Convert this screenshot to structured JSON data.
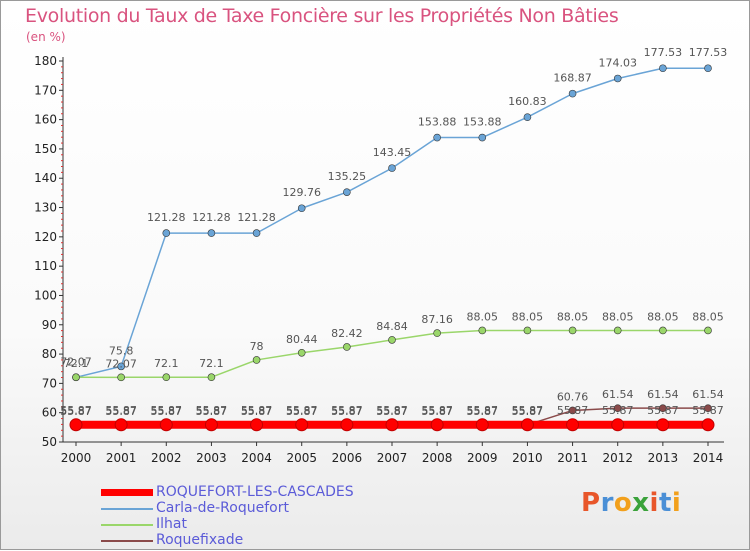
{
  "chart_data": {
    "type": "line",
    "title": "Evolution du Taux de Taxe Foncière sur les Propriétés Non Bâties",
    "unit_label": "(en %)",
    "x": [
      "2000",
      "2001",
      "2002",
      "2003",
      "2004",
      "2005",
      "2006",
      "2007",
      "2008",
      "2009",
      "2010",
      "2011",
      "2012",
      "2013",
      "2014"
    ],
    "ylim": [
      50,
      180
    ],
    "yticks": [
      50,
      60,
      70,
      80,
      90,
      100,
      110,
      120,
      130,
      140,
      150,
      160,
      170,
      180
    ],
    "grid": false,
    "legend_position": "bottom-left",
    "series": [
      {
        "name": "ROQUEFORT-LES-CASCADES",
        "color": "#ff0000",
        "values": [
          55.87,
          55.87,
          55.87,
          55.87,
          55.87,
          55.87,
          55.87,
          55.87,
          55.87,
          55.87,
          55.87,
          55.87,
          55.87,
          55.87,
          55.87
        ],
        "labels": [
          "55.87",
          "55.87",
          "55.87",
          "55.87",
          "55.87",
          "55.87",
          "55.87",
          "55.87",
          "55.87",
          "55.87",
          "55.87",
          "55.87",
          "55.87",
          "55.87",
          "55.87"
        ]
      },
      {
        "name": "Carla-de-Roquefort",
        "color": "#6aa4d6",
        "values": [
          72.07,
          75.8,
          121.28,
          121.28,
          121.28,
          129.76,
          135.25,
          143.45,
          153.88,
          153.88,
          160.83,
          168.87,
          174.03,
          177.53,
          177.53
        ],
        "labels": [
          "72.07",
          "75.8",
          "121.28",
          "121.28",
          "121.28",
          "129.76",
          "135.25",
          "143.45",
          "153.88",
          "153.88",
          "160.83",
          "168.87",
          "174.03",
          "177.53",
          "177.53"
        ]
      },
      {
        "name": "Ilhat",
        "color": "#9ad66a",
        "values": [
          72.1,
          72.07,
          72.1,
          72.1,
          78,
          80.44,
          82.42,
          84.84,
          87.16,
          88.05,
          88.05,
          88.05,
          88.05,
          88.05,
          88.05
        ],
        "labels": [
          "72.1",
          "72.07",
          "72.1",
          "72.1",
          "78",
          "80.44",
          "82.42",
          "84.84",
          "87.16",
          "88.05",
          "88.05",
          "88.05",
          "88.05",
          "88.05",
          "88.05"
        ]
      },
      {
        "name": "Roquefixade",
        "color": "#8a4a4a",
        "values": [
          55.87,
          55.87,
          55.87,
          55.87,
          55.87,
          55.87,
          55.87,
          55.87,
          55.87,
          55.87,
          55.87,
          60.76,
          61.54,
          61.54,
          61.54
        ],
        "labels": [
          "55.87",
          "55.87",
          "55.87",
          "55.87",
          "55.87",
          "55.87",
          "55.87",
          "55.87",
          "55.87",
          "55.87",
          "55.87",
          "60.76",
          "61.54",
          "61.54",
          "61.54"
        ]
      }
    ]
  },
  "logo": {
    "letters": [
      "P",
      "r",
      "o",
      "x",
      "i",
      "t",
      "i"
    ],
    "colors": [
      "#e8562a",
      "#4a8fd6",
      "#f2a01c",
      "#3aa23a",
      "#e8562a",
      "#4a8fd6",
      "#f2a01c"
    ]
  }
}
